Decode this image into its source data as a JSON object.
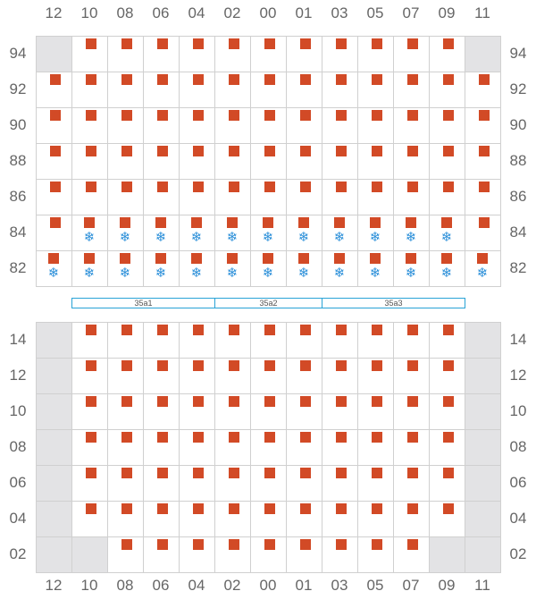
{
  "colors": {
    "marker": "#d24a26",
    "snowflake": "#2b8fd9",
    "segment_border": "#29a3d6"
  },
  "icons": {
    "marker": "square-marker-icon",
    "snowflake": "snowflake-icon"
  },
  "snowflake_glyph": "❄",
  "columns": [
    "12",
    "10",
    "08",
    "06",
    "04",
    "02",
    "00",
    "01",
    "03",
    "05",
    "07",
    "09",
    "11"
  ],
  "top_grid": {
    "rows": [
      {
        "label": "94",
        "disabled": [
          0,
          12
        ],
        "markers": [
          1,
          2,
          3,
          4,
          5,
          6,
          7,
          8,
          9,
          10,
          11
        ],
        "snow": []
      },
      {
        "label": "92",
        "disabled": [],
        "markers": [
          0,
          1,
          2,
          3,
          4,
          5,
          6,
          7,
          8,
          9,
          10,
          11,
          12
        ],
        "snow": []
      },
      {
        "label": "90",
        "disabled": [],
        "markers": [
          0,
          1,
          2,
          3,
          4,
          5,
          6,
          7,
          8,
          9,
          10,
          11,
          12
        ],
        "snow": []
      },
      {
        "label": "88",
        "disabled": [],
        "markers": [
          0,
          1,
          2,
          3,
          4,
          5,
          6,
          7,
          8,
          9,
          10,
          11,
          12
        ],
        "snow": []
      },
      {
        "label": "86",
        "disabled": [],
        "markers": [
          0,
          1,
          2,
          3,
          4,
          5,
          6,
          7,
          8,
          9,
          10,
          11,
          12
        ],
        "snow": []
      },
      {
        "label": "84",
        "disabled": [],
        "markers": [
          0,
          1,
          2,
          3,
          4,
          5,
          6,
          7,
          8,
          9,
          10,
          11,
          12
        ],
        "snow": [
          1,
          2,
          3,
          4,
          5,
          6,
          7,
          8,
          9,
          10,
          11
        ]
      },
      {
        "label": "82",
        "disabled": [],
        "markers": [
          0,
          1,
          2,
          3,
          4,
          5,
          6,
          7,
          8,
          9,
          10,
          11,
          12
        ],
        "snow": [
          0,
          1,
          2,
          3,
          4,
          5,
          6,
          7,
          8,
          9,
          10,
          11,
          12
        ]
      }
    ]
  },
  "segments": [
    {
      "label": "35a1",
      "from": 1,
      "to": 5
    },
    {
      "label": "35a2",
      "from": 5,
      "to": 8
    },
    {
      "label": "35a3",
      "from": 8,
      "to": 12
    }
  ],
  "bottom_grid": {
    "rows": [
      {
        "label": "14",
        "disabled": [
          0,
          12
        ],
        "markers": [
          1,
          2,
          3,
          4,
          5,
          6,
          7,
          8,
          9,
          10,
          11
        ],
        "snow": []
      },
      {
        "label": "12",
        "disabled": [
          0,
          12
        ],
        "markers": [
          1,
          2,
          3,
          4,
          5,
          6,
          7,
          8,
          9,
          10,
          11
        ],
        "snow": []
      },
      {
        "label": "10",
        "disabled": [
          0,
          12
        ],
        "markers": [
          1,
          2,
          3,
          4,
          5,
          6,
          7,
          8,
          9,
          10,
          11
        ],
        "snow": []
      },
      {
        "label": "08",
        "disabled": [
          0,
          12
        ],
        "markers": [
          1,
          2,
          3,
          4,
          5,
          6,
          7,
          8,
          9,
          10,
          11
        ],
        "snow": []
      },
      {
        "label": "06",
        "disabled": [
          0,
          12
        ],
        "markers": [
          1,
          2,
          3,
          4,
          5,
          6,
          7,
          8,
          9,
          10,
          11
        ],
        "snow": []
      },
      {
        "label": "04",
        "disabled": [
          0,
          12
        ],
        "markers": [
          1,
          2,
          3,
          4,
          5,
          6,
          7,
          8,
          9,
          10,
          11
        ],
        "snow": []
      },
      {
        "label": "02",
        "disabled": [
          0,
          1,
          11,
          12
        ],
        "markers": [
          2,
          3,
          4,
          5,
          6,
          7,
          8,
          9,
          10
        ],
        "snow": []
      }
    ]
  }
}
